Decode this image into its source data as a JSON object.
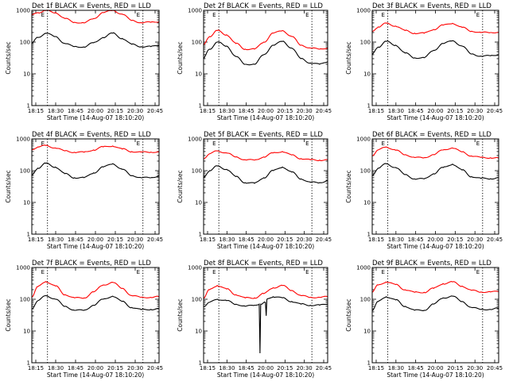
{
  "chart_data": [
    {
      "type": "line",
      "title": "Det 1f BLACK = Events, RED = LLD",
      "xlabel": "Start Time (14-Aug-07 18:10:20)",
      "ylabel": "Counts/sec",
      "yscale": "log",
      "ylim": [
        1,
        1000
      ],
      "yticks": [
        "1",
        "10",
        "100",
        "1000"
      ],
      "xlim": [
        "18:10:20",
        "20:50:20"
      ],
      "xticks": [
        "18:15",
        "18:30",
        "18:45",
        "20:00",
        "20:15",
        "20:30",
        "20:45"
      ],
      "markers": [
        "18:30",
        "20:30"
      ],
      "marker_label": "E",
      "series": [
        {
          "name": "Events",
          "color": "#000000",
          "x": [
            "18:10",
            "18:18",
            "18:28",
            "18:40",
            "18:52",
            "19:04",
            "19:16",
            "19:28",
            "19:40",
            "19:52",
            "20:04",
            "20:16",
            "20:28",
            "20:40",
            "20:50"
          ],
          "y": [
            90,
            140,
            190,
            150,
            90,
            72,
            70,
            95,
            140,
            190,
            130,
            85,
            72,
            72,
            78
          ]
        },
        {
          "name": "LLD",
          "color": "#ff0000",
          "x": [
            "18:10",
            "18:18",
            "18:28",
            "18:40",
            "18:52",
            "19:04",
            "19:16",
            "19:28",
            "19:40",
            "19:52",
            "20:04",
            "20:16",
            "20:28",
            "20:40",
            "20:50"
          ],
          "y": [
            700,
            850,
            980,
            850,
            550,
            420,
            400,
            550,
            850,
            990,
            760,
            480,
            410,
            420,
            440
          ]
        }
      ]
    },
    {
      "type": "line",
      "title": "Det 2f BLACK = Events, RED = LLD",
      "xlabel": "Start Time (14-Aug-07 18:10:20)",
      "ylabel": "Counts/sec",
      "yscale": "log",
      "ylim": [
        1,
        1000
      ],
      "yticks": [
        "1",
        "10",
        "100",
        "1000"
      ],
      "xlim": [
        "18:10:20",
        "20:50:20"
      ],
      "xticks": [
        "18:15",
        "18:30",
        "18:45",
        "20:00",
        "20:15",
        "20:30",
        "20:45"
      ],
      "markers": [
        "18:30",
        "20:30"
      ],
      "marker_label": "E",
      "series": [
        {
          "name": "Events",
          "color": "#000000",
          "x": [
            "18:10",
            "18:18",
            "18:28",
            "18:40",
            "18:52",
            "19:04",
            "19:16",
            "19:28",
            "19:40",
            "19:52",
            "20:04",
            "20:16",
            "20:28",
            "20:40",
            "20:50"
          ],
          "y": [
            30,
            60,
            100,
            75,
            35,
            20,
            20,
            40,
            80,
            105,
            65,
            30,
            22,
            20,
            24
          ]
        },
        {
          "name": "LLD",
          "color": "#ff0000",
          "x": [
            "18:10",
            "18:18",
            "18:28",
            "18:40",
            "18:52",
            "19:04",
            "19:16",
            "19:28",
            "19:40",
            "19:52",
            "20:04",
            "20:16",
            "20:28",
            "20:40",
            "20:50"
          ],
          "y": [
            80,
            150,
            230,
            170,
            90,
            60,
            60,
            100,
            190,
            230,
            150,
            80,
            65,
            60,
            65
          ]
        }
      ]
    },
    {
      "type": "line",
      "title": "Det 3f BLACK = Events, RED = LLD",
      "xlabel": "Start Time (14-Aug-07 18:10:20)",
      "ylabel": "Counts/sec",
      "yscale": "log",
      "ylim": [
        1,
        1000
      ],
      "yticks": [
        "1",
        "10",
        "100",
        "1000"
      ],
      "xlim": [
        "18:10:20",
        "20:50:20"
      ],
      "xticks": [
        "18:15",
        "18:30",
        "18:45",
        "20:00",
        "20:15",
        "20:30",
        "20:45"
      ],
      "markers": [
        "18:30",
        "20:30"
      ],
      "marker_label": "E",
      "series": [
        {
          "name": "Events",
          "color": "#000000",
          "x": [
            "18:10",
            "18:18",
            "18:28",
            "18:40",
            "18:52",
            "19:04",
            "19:16",
            "19:28",
            "19:40",
            "19:52",
            "20:04",
            "20:16",
            "20:28",
            "20:40",
            "20:50"
          ],
          "y": [
            40,
            70,
            105,
            80,
            45,
            32,
            32,
            55,
            90,
            110,
            75,
            42,
            36,
            37,
            40
          ]
        },
        {
          "name": "LLD",
          "color": "#ff0000",
          "x": [
            "18:10",
            "18:18",
            "18:28",
            "18:40",
            "18:52",
            "19:04",
            "19:16",
            "19:28",
            "19:40",
            "19:52",
            "20:04",
            "20:16",
            "20:28",
            "20:40",
            "20:50"
          ],
          "y": [
            210,
            300,
            390,
            320,
            230,
            190,
            190,
            250,
            340,
            390,
            290,
            220,
            200,
            200,
            205
          ]
        }
      ]
    },
    {
      "type": "line",
      "title": "Det 4f BLACK = Events, RED = LLD",
      "xlabel": "Start Time (14-Aug-07 18:10:20)",
      "ylabel": "Counts/sec",
      "yscale": "log",
      "ylim": [
        1,
        1000
      ],
      "yticks": [
        "1",
        "10",
        "100",
        "1000"
      ],
      "xlim": [
        "18:10:20",
        "20:50:20"
      ],
      "xticks": [
        "18:15",
        "18:30",
        "18:45",
        "20:00",
        "20:15",
        "20:30",
        "20:45"
      ],
      "markers": [
        "18:30",
        "20:30"
      ],
      "marker_label": "E",
      "series": [
        {
          "name": "Events",
          "color": "#000000",
          "x": [
            "18:10",
            "18:18",
            "18:28",
            "18:40",
            "18:52",
            "19:04",
            "19:16",
            "19:28",
            "19:40",
            "19:52",
            "20:04",
            "20:16",
            "20:28",
            "20:40",
            "20:50"
          ],
          "y": [
            70,
            120,
            170,
            130,
            80,
            60,
            60,
            85,
            130,
            165,
            110,
            70,
            60,
            60,
            68
          ]
        },
        {
          "name": "LLD",
          "color": "#ff0000",
          "x": [
            "18:10",
            "18:18",
            "18:28",
            "18:40",
            "18:52",
            "19:04",
            "19:16",
            "19:28",
            "19:40",
            "19:52",
            "20:04",
            "20:16",
            "20:28",
            "20:40",
            "20:50"
          ],
          "y": [
            450,
            560,
            620,
            520,
            420,
            380,
            380,
            450,
            560,
            600,
            480,
            400,
            380,
            385,
            390
          ]
        }
      ]
    },
    {
      "type": "line",
      "title": "Det 5f BLACK = Events, RED = LLD",
      "xlabel": "Start Time (14-Aug-07 18:10:20)",
      "ylabel": "Counts/sec",
      "yscale": "log",
      "ylim": [
        1,
        1000
      ],
      "yticks": [
        "1",
        "10",
        "100",
        "1000"
      ],
      "xlim": [
        "18:10:20",
        "20:50:20"
      ],
      "xticks": [
        "18:15",
        "18:30",
        "18:45",
        "20:00",
        "20:15",
        "20:30",
        "20:45"
      ],
      "markers": [
        "18:30",
        "20:30"
      ],
      "marker_label": "E",
      "series": [
        {
          "name": "Events",
          "color": "#000000",
          "x": [
            "18:10",
            "18:18",
            "18:28",
            "18:40",
            "18:52",
            "19:04",
            "19:16",
            "19:28",
            "19:40",
            "19:52",
            "20:04",
            "20:16",
            "20:28",
            "20:40",
            "20:50"
          ],
          "y": [
            60,
            100,
            140,
            110,
            65,
            42,
            40,
            60,
            100,
            130,
            90,
            55,
            43,
            42,
            48
          ]
        },
        {
          "name": "LLD",
          "color": "#ff0000",
          "x": [
            "18:10",
            "18:18",
            "18:28",
            "18:40",
            "18:52",
            "19:04",
            "19:16",
            "19:28",
            "19:40",
            "19:52",
            "20:04",
            "20:16",
            "20:28",
            "20:40",
            "20:50"
          ],
          "y": [
            240,
            340,
            420,
            360,
            270,
            220,
            215,
            270,
            360,
            400,
            310,
            240,
            220,
            215,
            220
          ]
        }
      ]
    },
    {
      "type": "line",
      "title": "Det 6f BLACK = Events, RED = LLD",
      "xlabel": "Start Time (14-Aug-07 18:10:20)",
      "ylabel": "Counts/sec",
      "yscale": "log",
      "ylim": [
        1,
        1000
      ],
      "yticks": [
        "1",
        "10",
        "100",
        "1000"
      ],
      "xlim": [
        "18:10:20",
        "20:50:20"
      ],
      "xticks": [
        "18:15",
        "18:30",
        "18:45",
        "20:00",
        "20:15",
        "20:30",
        "20:45"
      ],
      "markers": [
        "18:30",
        "20:30"
      ],
      "marker_label": "E",
      "series": [
        {
          "name": "Events",
          "color": "#000000",
          "x": [
            "18:10",
            "18:18",
            "18:28",
            "18:40",
            "18:52",
            "19:04",
            "19:16",
            "19:28",
            "19:40",
            "19:52",
            "20:04",
            "20:16",
            "20:28",
            "20:40",
            "20:50"
          ],
          "y": [
            70,
            120,
            165,
            125,
            75,
            55,
            55,
            80,
            125,
            160,
            105,
            65,
            57,
            56,
            60
          ]
        },
        {
          "name": "LLD",
          "color": "#ff0000",
          "x": [
            "18:10",
            "18:18",
            "18:28",
            "18:40",
            "18:52",
            "19:04",
            "19:16",
            "19:28",
            "19:40",
            "19:52",
            "20:04",
            "20:16",
            "20:28",
            "20:40",
            "20:50"
          ],
          "y": [
            300,
            450,
            560,
            440,
            320,
            260,
            255,
            320,
            450,
            520,
            390,
            290,
            260,
            255,
            250
          ]
        }
      ]
    },
    {
      "type": "line",
      "title": "Det 7f BLACK = Events, RED = LLD",
      "xlabel": "Start Time (14-Aug-07 18:10:20)",
      "ylabel": "Counts/sec",
      "yscale": "log",
      "ylim": [
        1,
        1000
      ],
      "yticks": [
        "1",
        "10",
        "100",
        "1000"
      ],
      "xlim": [
        "18:10:20",
        "20:50:20"
      ],
      "xticks": [
        "18:15",
        "18:30",
        "18:45",
        "20:00",
        "20:15",
        "20:30",
        "20:45"
      ],
      "markers": [
        "18:30",
        "20:30"
      ],
      "marker_label": "E",
      "series": [
        {
          "name": "Events",
          "color": "#000000",
          "x": [
            "18:10",
            "18:18",
            "18:28",
            "18:40",
            "18:52",
            "19:04",
            "19:16",
            "19:28",
            "19:40",
            "19:52",
            "20:04",
            "20:16",
            "20:28",
            "20:40",
            "20:50"
          ],
          "y": [
            50,
            90,
            130,
            100,
            60,
            45,
            45,
            65,
            100,
            125,
            85,
            55,
            47,
            48,
            50
          ]
        },
        {
          "name": "LLD",
          "color": "#ff0000",
          "x": [
            "18:10",
            "18:18",
            "18:28",
            "18:40",
            "18:52",
            "19:04",
            "19:16",
            "19:28",
            "19:40",
            "19:52",
            "20:04",
            "20:16",
            "20:28",
            "20:40",
            "20:50"
          ],
          "y": [
            120,
            250,
            360,
            260,
            140,
            110,
            110,
            170,
            280,
            340,
            220,
            130,
            115,
            115,
            120
          ]
        }
      ]
    },
    {
      "type": "line",
      "title": "Det 8f BLACK = Events, RED = LLD",
      "xlabel": "Start Time (14-Aug-07 18:10:20)",
      "ylabel": "Counts/sec",
      "yscale": "log",
      "ylim": [
        1,
        1000
      ],
      "yticks": [
        "1",
        "10",
        "100",
        "1000"
      ],
      "xlim": [
        "18:10:20",
        "20:50:20"
      ],
      "xticks": [
        "18:15",
        "18:30",
        "18:45",
        "20:00",
        "20:15",
        "20:30",
        "20:45"
      ],
      "markers": [
        "18:30",
        "20:30"
      ],
      "marker_label": "E",
      "series": [
        {
          "name": "Events",
          "color": "#000000",
          "x": [
            "18:10",
            "18:18",
            "18:28",
            "18:40",
            "18:52",
            "19:04",
            "19:16",
            "19:22",
            "19:23",
            "19:24",
            "19:30",
            "19:31",
            "19:32",
            "19:40",
            "19:52",
            "20:04",
            "20:16",
            "20:28",
            "20:40",
            "20:50"
          ],
          "y": [
            60,
            80,
            100,
            90,
            70,
            60,
            65,
            70,
            2,
            70,
            80,
            30,
            100,
            120,
            110,
            85,
            70,
            65,
            65,
            70
          ]
        },
        {
          "name": "LLD",
          "color": "#ff0000",
          "x": [
            "18:10",
            "18:18",
            "18:28",
            "18:40",
            "18:52",
            "19:04",
            "19:16",
            "19:28",
            "19:40",
            "19:52",
            "20:04",
            "20:16",
            "20:28",
            "20:40",
            "20:50"
          ],
          "y": [
            110,
            200,
            270,
            210,
            140,
            110,
            110,
            150,
            230,
            270,
            190,
            130,
            115,
            115,
            120
          ]
        }
      ]
    },
    {
      "type": "line",
      "title": "Det 9f BLACK = Events, RED = LLD",
      "xlabel": "Start Time (14-Aug-07 18:10:20)",
      "ylabel": "Counts/sec",
      "yscale": "log",
      "ylim": [
        1,
        1000
      ],
      "yticks": [
        "1",
        "10",
        "100",
        "1000"
      ],
      "xlim": [
        "18:10:20",
        "20:50:20"
      ],
      "xticks": [
        "18:15",
        "18:30",
        "18:45",
        "20:00",
        "20:15",
        "20:30",
        "20:45"
      ],
      "markers": [
        "18:30",
        "20:30"
      ],
      "marker_label": "E",
      "series": [
        {
          "name": "Events",
          "color": "#000000",
          "x": [
            "18:10",
            "18:18",
            "18:28",
            "18:40",
            "18:52",
            "19:04",
            "19:16",
            "19:28",
            "19:40",
            "19:52",
            "20:04",
            "20:16",
            "20:28",
            "20:40",
            "20:50"
          ],
          "y": [
            45,
            85,
            120,
            95,
            60,
            45,
            45,
            70,
            110,
            125,
            85,
            55,
            48,
            48,
            52
          ]
        },
        {
          "name": "LLD",
          "color": "#ff0000",
          "x": [
            "18:10",
            "18:18",
            "18:28",
            "18:40",
            "18:52",
            "19:04",
            "19:16",
            "19:28",
            "19:40",
            "19:52",
            "20:04",
            "20:16",
            "20:28",
            "20:40",
            "20:50"
          ],
          "y": [
            170,
            280,
            350,
            290,
            200,
            165,
            165,
            220,
            310,
            350,
            260,
            190,
            170,
            170,
            175
          ]
        }
      ]
    }
  ]
}
